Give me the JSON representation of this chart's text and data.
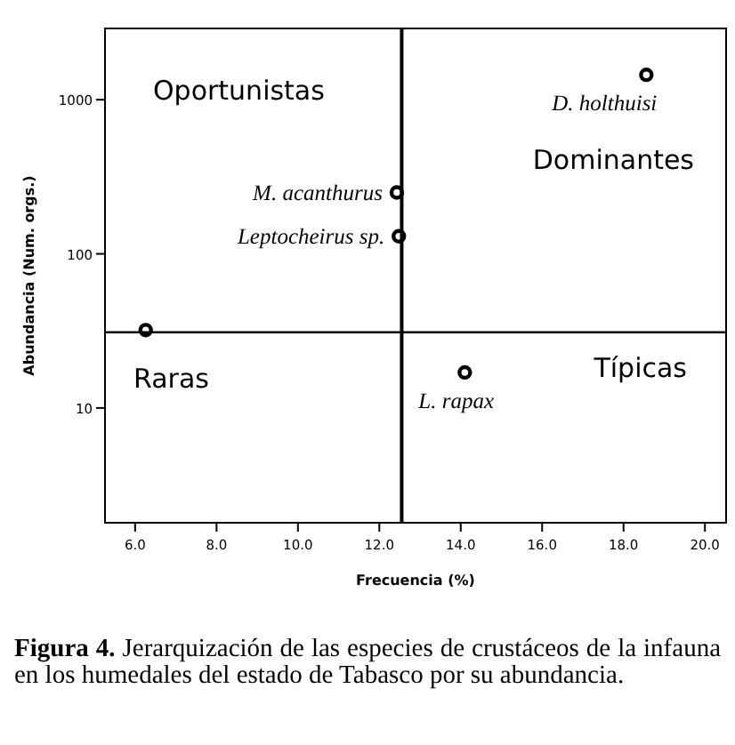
{
  "chart_data": {
    "type": "scatter",
    "xlabel": "Frecuencia (%)",
    "ylabel": "Abundancia (Num. orgs.)",
    "x": [
      18.56,
      12.43,
      12.48,
      6.26,
      14.1
    ],
    "values": [
      1450,
      250,
      130,
      32,
      17
    ],
    "color": "#000000",
    "marker": "circle",
    "log": "y",
    "grid": false,
    "xlim": [
      5.26,
      20.52
    ],
    "ylim": [
      1.8,
      2900
    ],
    "xticks": [
      {
        "value": 6,
        "label": "6.0"
      },
      {
        "value": 8,
        "label": "8.0"
      },
      {
        "value": 10,
        "label": "10.0"
      },
      {
        "value": 12,
        "label": "12.0"
      },
      {
        "value": 14,
        "label": "14.0"
      },
      {
        "value": 16,
        "label": "16.0"
      },
      {
        "value": 18,
        "label": "18.0"
      },
      {
        "value": 20,
        "label": "20.0"
      }
    ],
    "yticks": [
      10,
      100,
      1000
    ],
    "ref_lines": [
      {
        "axis": "x",
        "value": 12.55
      },
      {
        "axis": "y",
        "value": 31
      }
    ],
    "annotations": [
      "Oportunistas",
      "Dominantes",
      "Raras",
      "Típicas",
      {
        "text": "D. holthuisi",
        "x": 18.56,
        "y": 1450
      },
      {
        "text": "M. acanthurus",
        "x": 12.43,
        "y": 250
      },
      {
        "text": "Leptocheirus sp.",
        "x": 12.48,
        "y": 130
      },
      {
        "text": "L. rapax",
        "x": 14.1,
        "y": 17
      },
      "Figura 4. Jerarquización de las especies de crustáceos de la infauna en los humedales del estado de Tabasco por su abundancia."
    ]
  }
}
